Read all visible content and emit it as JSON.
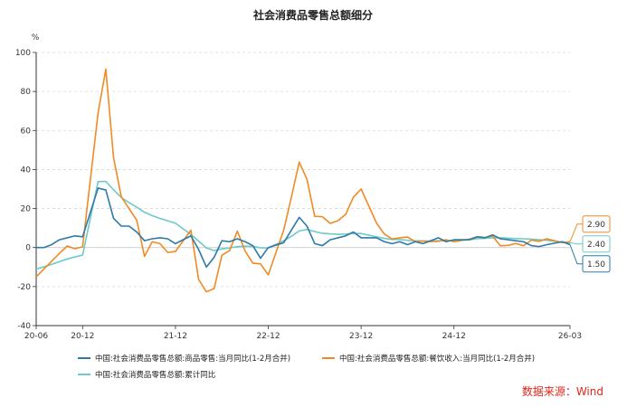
{
  "chart_data": {
    "type": "line",
    "title": "社会消费品零售总额细分",
    "ylabel": "%",
    "ylim": [
      -40,
      100
    ],
    "yticks": [
      -40,
      -20,
      0,
      20,
      40,
      60,
      80,
      100
    ],
    "xlim": [
      "2020-06",
      "2026-03"
    ],
    "xticks": [
      "20-06",
      "20-12",
      "21-12",
      "22-12",
      "23-12",
      "24-12",
      "26-03"
    ],
    "xtick_months": [
      "2020-06",
      "2020-12",
      "2021-12",
      "2022-12",
      "2023-12",
      "2024-12",
      "2026-03"
    ],
    "grid": true,
    "legend_position": "bottom",
    "series": [
      {
        "name": "中国:社会消费品零售总额:商品零售:当月同比(1-2月合并)",
        "color": "#2e7aa8",
        "end_label": "1.50",
        "points": [
          [
            "2020-06",
            0
          ],
          [
            "2020-07",
            0
          ],
          [
            "2020-08",
            1.5
          ],
          [
            "2020-09",
            4
          ],
          [
            "2020-10",
            5
          ],
          [
            "2020-11",
            6
          ],
          [
            "2020-12",
            5.5
          ],
          [
            "2021-02",
            30.5
          ],
          [
            "2021-03",
            29.5
          ],
          [
            "2021-04",
            15
          ],
          [
            "2021-05",
            11
          ],
          [
            "2021-06",
            11
          ],
          [
            "2021-07",
            8
          ],
          [
            "2021-08",
            3.5
          ],
          [
            "2021-09",
            4.5
          ],
          [
            "2021-10",
            5
          ],
          [
            "2021-11",
            4.5
          ],
          [
            "2021-12",
            2
          ],
          [
            "2022-02",
            6
          ],
          [
            "2022-03",
            -1
          ],
          [
            "2022-04",
            -10
          ],
          [
            "2022-05",
            -5
          ],
          [
            "2022-06",
            3.5
          ],
          [
            "2022-07",
            3
          ],
          [
            "2022-08",
            4.5
          ],
          [
            "2022-09",
            3
          ],
          [
            "2022-10",
            1
          ],
          [
            "2022-11",
            -5.5
          ],
          [
            "2022-12",
            0
          ],
          [
            "2023-02",
            2.5
          ],
          [
            "2023-03",
            9
          ],
          [
            "2023-04",
            15.5
          ],
          [
            "2023-05",
            11
          ],
          [
            "2023-06",
            2
          ],
          [
            "2023-07",
            1
          ],
          [
            "2023-08",
            4
          ],
          [
            "2023-09",
            5
          ],
          [
            "2023-10",
            6
          ],
          [
            "2023-11",
            8
          ],
          [
            "2023-12",
            5
          ],
          [
            "2024-02",
            5
          ],
          [
            "2024-03",
            3
          ],
          [
            "2024-04",
            2
          ],
          [
            "2024-05",
            3
          ],
          [
            "2024-06",
            1.5
          ],
          [
            "2024-07",
            3
          ],
          [
            "2024-08",
            2
          ],
          [
            "2024-09",
            3.5
          ],
          [
            "2024-10",
            5
          ],
          [
            "2024-11",
            3
          ],
          [
            "2024-12",
            4
          ],
          [
            "2025-02",
            4
          ],
          [
            "2025-03",
            5.5
          ],
          [
            "2025-04",
            5
          ],
          [
            "2025-05",
            6.5
          ],
          [
            "2025-06",
            4.5
          ],
          [
            "2025-07",
            4
          ],
          [
            "2025-08",
            3.5
          ],
          [
            "2025-09",
            3
          ],
          [
            "2025-10",
            1
          ],
          [
            "2025-11",
            0.5
          ],
          [
            "2025-12",
            1.5
          ],
          [
            "2026-02",
            3
          ],
          [
            "2026-03",
            1.5
          ]
        ]
      },
      {
        "name": "中国:社会消费品零售总额:餐饮收入:当月同比(1-2月合并)",
        "color": "#f08a24",
        "end_label": "2.90",
        "points": [
          [
            "2020-06",
            -15
          ],
          [
            "2020-07",
            -11
          ],
          [
            "2020-08",
            -7
          ],
          [
            "2020-09",
            -3
          ],
          [
            "2020-10",
            0.8
          ],
          [
            "2020-11",
            -0.6
          ],
          [
            "2020-12",
            0.4
          ],
          [
            "2021-02",
            69
          ],
          [
            "2021-03",
            91.5
          ],
          [
            "2021-04",
            46
          ],
          [
            "2021-05",
            26
          ],
          [
            "2021-06",
            20
          ],
          [
            "2021-07",
            14
          ],
          [
            "2021-08",
            -4.5
          ],
          [
            "2021-09",
            3
          ],
          [
            "2021-10",
            2
          ],
          [
            "2021-11",
            -2.5
          ],
          [
            "2021-12",
            -2
          ],
          [
            "2022-02",
            8.9
          ],
          [
            "2022-03",
            -16.4
          ],
          [
            "2022-04",
            -22.7
          ],
          [
            "2022-05",
            -21
          ],
          [
            "2022-06",
            -4
          ],
          [
            "2022-07",
            -1.5
          ],
          [
            "2022-08",
            8.4
          ],
          [
            "2022-09",
            -1.7
          ],
          [
            "2022-10",
            -8
          ],
          [
            "2022-11",
            -8.4
          ],
          [
            "2022-12",
            -14
          ],
          [
            "2023-02",
            9
          ],
          [
            "2023-03",
            26
          ],
          [
            "2023-04",
            43.8
          ],
          [
            "2023-05",
            35
          ],
          [
            "2023-06",
            16
          ],
          [
            "2023-07",
            15.8
          ],
          [
            "2023-08",
            12.4
          ],
          [
            "2023-09",
            13.8
          ],
          [
            "2023-10",
            17
          ],
          [
            "2023-11",
            25.8
          ],
          [
            "2023-12",
            30
          ],
          [
            "2024-02",
            12.5
          ],
          [
            "2024-03",
            6.9
          ],
          [
            "2024-04",
            4.4
          ],
          [
            "2024-05",
            5
          ],
          [
            "2024-06",
            5.4
          ],
          [
            "2024-07",
            3
          ],
          [
            "2024-08",
            3.3
          ],
          [
            "2024-09",
            3.1
          ],
          [
            "2024-10",
            3.2
          ],
          [
            "2024-11",
            4
          ],
          [
            "2024-12",
            3
          ],
          [
            "2025-02",
            4.3
          ],
          [
            "2025-03",
            5.6
          ],
          [
            "2025-04",
            5.2
          ],
          [
            "2025-05",
            5.9
          ],
          [
            "2025-06",
            0.9
          ],
          [
            "2025-07",
            1.1
          ],
          [
            "2025-08",
            2.1
          ],
          [
            "2025-09",
            0.9
          ],
          [
            "2025-10",
            3.8
          ],
          [
            "2025-11",
            3.2
          ],
          [
            "2025-12",
            4.5
          ],
          [
            "2026-02",
            2.5
          ],
          [
            "2026-03",
            2.9
          ]
        ]
      },
      {
        "name": "中国:社会消费品零售总额:累计同比",
        "color": "#6ec9c9",
        "end_label": "2.40",
        "points": [
          [
            "2020-06",
            -11
          ],
          [
            "2020-07",
            -9.9
          ],
          [
            "2020-08",
            -8.6
          ],
          [
            "2020-09",
            -7.2
          ],
          [
            "2020-10",
            -5.9
          ],
          [
            "2020-11",
            -4.8
          ],
          [
            "2020-12",
            -3.9
          ],
          [
            "2021-02",
            33.8
          ],
          [
            "2021-03",
            33.9
          ],
          [
            "2021-04",
            29.6
          ],
          [
            "2021-05",
            25.7
          ],
          [
            "2021-06",
            23
          ],
          [
            "2021-07",
            20.7
          ],
          [
            "2021-08",
            18.1
          ],
          [
            "2021-09",
            16.4
          ],
          [
            "2021-10",
            14.9
          ],
          [
            "2021-11",
            13.7
          ],
          [
            "2021-12",
            12.5
          ],
          [
            "2022-02",
            6.7
          ],
          [
            "2022-03",
            3.3
          ],
          [
            "2022-04",
            -0.2
          ],
          [
            "2022-05",
            -1.5
          ],
          [
            "2022-06",
            -0.7
          ],
          [
            "2022-07",
            -0.2
          ],
          [
            "2022-08",
            0.5
          ],
          [
            "2022-09",
            0.7
          ],
          [
            "2022-10",
            0.6
          ],
          [
            "2022-11",
            -0.1
          ],
          [
            "2022-12",
            -0.2
          ],
          [
            "2023-02",
            3.5
          ],
          [
            "2023-03",
            5.8
          ],
          [
            "2023-04",
            8.5
          ],
          [
            "2023-05",
            9.3
          ],
          [
            "2023-06",
            8.2
          ],
          [
            "2023-07",
            7.3
          ],
          [
            "2023-08",
            7
          ],
          [
            "2023-09",
            6.8
          ],
          [
            "2023-10",
            6.9
          ],
          [
            "2023-11",
            7.2
          ],
          [
            "2023-12",
            7.2
          ],
          [
            "2024-02",
            5.5
          ],
          [
            "2024-03",
            4.7
          ],
          [
            "2024-04",
            4.1
          ],
          [
            "2024-05",
            4.1
          ],
          [
            "2024-06",
            3.7
          ],
          [
            "2024-07",
            3.5
          ],
          [
            "2024-08",
            3.4
          ],
          [
            "2024-09",
            3.3
          ],
          [
            "2024-10",
            3.5
          ],
          [
            "2024-11",
            3.5
          ],
          [
            "2024-12",
            3.5
          ],
          [
            "2025-02",
            4
          ],
          [
            "2025-03",
            4.6
          ],
          [
            "2025-04",
            4.7
          ],
          [
            "2025-05",
            5
          ],
          [
            "2025-06",
            5
          ],
          [
            "2025-07",
            4.8
          ],
          [
            "2025-08",
            4.6
          ],
          [
            "2025-09",
            4.5
          ],
          [
            "2025-10",
            4.3
          ],
          [
            "2025-11",
            4
          ],
          [
            "2025-12",
            3.7
          ],
          [
            "2026-02",
            2.8
          ],
          [
            "2026-03",
            2.4
          ]
        ]
      }
    ]
  },
  "source_label": "数据来源：Wind"
}
